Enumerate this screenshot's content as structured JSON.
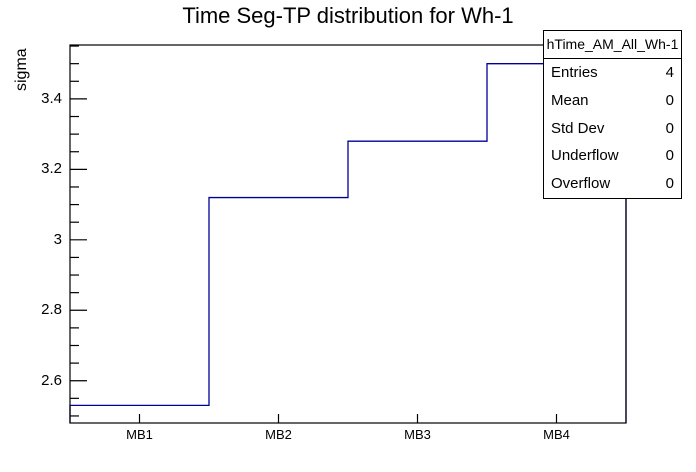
{
  "chart_data": {
    "type": "step",
    "title": "Time Seg-TP distribution for Wh-1",
    "xlabel": "",
    "ylabel": "sigma",
    "categories": [
      "MB1",
      "MB2",
      "MB3",
      "MB4"
    ],
    "values": [
      2.53,
      3.12,
      3.28,
      3.5
    ],
    "ylim": [
      2.48,
      3.553
    ],
    "y_major_ticks": [
      {
        "value": 2.6,
        "label": "2.6"
      },
      {
        "value": 2.8,
        "label": "2.8"
      },
      {
        "value": 3.0,
        "label": "3"
      },
      {
        "value": 3.2,
        "label": "3.2"
      },
      {
        "value": 3.4,
        "label": "3.4"
      }
    ],
    "y_minor_step": 0.05,
    "grid": false,
    "legend_position": "none",
    "line_color": "#000099",
    "frame_color": "#000000",
    "background_color": "#ffffff"
  },
  "stats_box": {
    "header": "hTime_AM_All_Wh-1",
    "rows": [
      {
        "label": "Entries",
        "value": "4"
      },
      {
        "label": "Mean",
        "value": "0"
      },
      {
        "label": "Std Dev",
        "value": "0"
      },
      {
        "label": "Underflow",
        "value": "0"
      },
      {
        "label": "Overflow",
        "value": "0"
      }
    ]
  }
}
